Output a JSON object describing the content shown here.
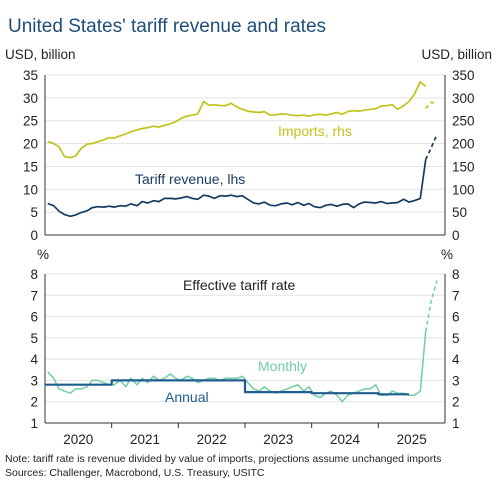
{
  "title": "United States' tariff revenue and rates",
  "note": "Note: tariff rate is revenue divided by value of imports, projections assume unchanged imports",
  "sources": "Sources: Challenger, Macrobond, U.S. Treasury, USITC",
  "colors": {
    "title": "#1f4e79",
    "imports": "#c3c21a",
    "revenue": "#143c61",
    "monthly": "#6fcfa3",
    "annual": "#1f5e8f"
  },
  "chart_data": [
    {
      "type": "line",
      "unit_left": "USD, billion",
      "unit_right": "USD, billion",
      "xlim": [
        2019.5,
        2025.5
      ],
      "x_ticks": [
        "2020",
        "2021",
        "2022",
        "2023",
        "2024",
        "2025"
      ],
      "y_left": {
        "ticks": [
          "0",
          "5",
          "10",
          "15",
          "20",
          "25",
          "30",
          "35"
        ],
        "lim": [
          0,
          35
        ]
      },
      "y_right": {
        "ticks": [
          "0",
          "50",
          "100",
          "150",
          "200",
          "250",
          "300",
          "350"
        ],
        "lim": [
          0,
          350
        ]
      },
      "grid": true,
      "series": [
        {
          "name": "Tariff revenue, lhs",
          "axis": "left",
          "x": [
            2019.54,
            2019.63,
            2019.71,
            2019.79,
            2019.88,
            2019.96,
            2020.04,
            2020.13,
            2020.21,
            2020.29,
            2020.38,
            2020.46,
            2020.54,
            2020.63,
            2020.71,
            2020.79,
            2020.88,
            2020.96,
            2021.04,
            2021.13,
            2021.21,
            2021.29,
            2021.38,
            2021.46,
            2021.54,
            2021.63,
            2021.71,
            2021.79,
            2021.88,
            2021.96,
            2022.04,
            2022.13,
            2022.21,
            2022.29,
            2022.38,
            2022.46,
            2022.54,
            2022.63,
            2022.71,
            2022.79,
            2022.88,
            2022.96,
            2023.04,
            2023.13,
            2023.21,
            2023.29,
            2023.38,
            2023.46,
            2023.54,
            2023.63,
            2023.71,
            2023.79,
            2023.88,
            2023.96,
            2024.04,
            2024.13,
            2024.21,
            2024.29,
            2024.38,
            2024.46,
            2024.54,
            2024.63,
            2024.71,
            2024.79,
            2024.88,
            2024.96,
            2025.04,
            2025.13,
            2025.21
          ],
          "values": [
            6.9,
            6.4,
            5.2,
            4.5,
            4.1,
            4.4,
            4.9,
            5.3,
            6.0,
            6.2,
            6.1,
            6.3,
            6.1,
            6.4,
            6.3,
            6.8,
            6.4,
            7.3,
            7.0,
            7.5,
            7.3,
            8.0,
            8.0,
            7.9,
            8.1,
            8.4,
            8.0,
            7.8,
            8.7,
            8.5,
            8.0,
            8.6,
            8.5,
            8.7,
            8.4,
            8.6,
            7.8,
            7.0,
            6.8,
            7.2,
            6.5,
            6.4,
            6.8,
            7.0,
            6.6,
            7.1,
            6.5,
            6.9,
            6.2,
            6.0,
            6.5,
            6.7,
            6.3,
            6.7,
            6.8,
            6.0,
            6.8,
            7.2,
            7.1,
            7.0,
            7.3,
            6.9,
            7.0,
            7.1,
            7.8,
            7.2,
            7.5,
            8.0,
            16.5
          ]
        },
        {
          "name": "Tariff revenue projection",
          "axis": "left",
          "dashed": true,
          "x": [
            2025.21,
            2025.29,
            2025.38
          ],
          "values": [
            16.5,
            19.0,
            22.0
          ]
        },
        {
          "name": "Imports, rhs",
          "axis": "right",
          "x": [
            2019.54,
            2019.63,
            2019.71,
            2019.79,
            2019.88,
            2019.96,
            2020.04,
            2020.13,
            2020.21,
            2020.29,
            2020.38,
            2020.46,
            2020.54,
            2020.63,
            2020.71,
            2020.79,
            2020.88,
            2020.96,
            2021.04,
            2021.13,
            2021.21,
            2021.29,
            2021.38,
            2021.46,
            2021.54,
            2021.63,
            2021.71,
            2021.79,
            2021.88,
            2021.96,
            2022.04,
            2022.13,
            2022.21,
            2022.29,
            2022.38,
            2022.46,
            2022.54,
            2022.63,
            2022.71,
            2022.79,
            2022.88,
            2022.96,
            2023.04,
            2023.13,
            2023.21,
            2023.29,
            2023.38,
            2023.46,
            2023.54,
            2023.63,
            2023.71,
            2023.79,
            2023.88,
            2023.96,
            2024.04,
            2024.13,
            2024.21,
            2024.29,
            2024.38,
            2024.46,
            2024.54,
            2024.63,
            2024.71,
            2024.79,
            2024.88,
            2024.96,
            2025.04,
            2025.13,
            2025.21
          ],
          "values": [
            204,
            200,
            193,
            172,
            169,
            173,
            189,
            199,
            200,
            204,
            208,
            213,
            212,
            217,
            221,
            226,
            230,
            233,
            235,
            238,
            236,
            240,
            243,
            248,
            255,
            260,
            262,
            265,
            292,
            284,
            285,
            283,
            283,
            288,
            280,
            275,
            271,
            269,
            268,
            270,
            262,
            263,
            265,
            264,
            262,
            261,
            262,
            260,
            263,
            264,
            262,
            265,
            268,
            264,
            270,
            272,
            271,
            273,
            275,
            276,
            282,
            283,
            285,
            275,
            283,
            292,
            308,
            335,
            325
          ]
        },
        {
          "name": "Imports projection",
          "axis": "right",
          "dashed": true,
          "x": [
            2025.21,
            2025.29,
            2025.38
          ],
          "values": [
            277,
            290,
            288
          ]
        }
      ],
      "annotations": [
        "Imports, rhs",
        "Tariff revenue, lhs"
      ]
    },
    {
      "type": "line",
      "unit_left": "%",
      "unit_right": "%",
      "title": "Effective tariff rate",
      "xlim": [
        2019.5,
        2025.5
      ],
      "x_ticks": [
        "2020",
        "2021",
        "2022",
        "2023",
        "2024",
        "2025"
      ],
      "y_left": {
        "ticks": [
          "1",
          "2",
          "3",
          "4",
          "5",
          "6",
          "7",
          "8"
        ],
        "lim": [
          1,
          8
        ]
      },
      "y_right": {
        "ticks": [
          "1",
          "2",
          "3",
          "4",
          "5",
          "6",
          "7",
          "8"
        ],
        "lim": [
          1,
          8
        ]
      },
      "grid": true,
      "series": [
        {
          "name": "Monthly",
          "x": [
            2019.54,
            2019.63,
            2019.71,
            2019.79,
            2019.88,
            2019.96,
            2020.04,
            2020.13,
            2020.21,
            2020.29,
            2020.38,
            2020.46,
            2020.54,
            2020.63,
            2020.71,
            2020.79,
            2020.88,
            2020.96,
            2021.04,
            2021.13,
            2021.21,
            2021.29,
            2021.38,
            2021.46,
            2021.54,
            2021.63,
            2021.71,
            2021.79,
            2021.88,
            2021.96,
            2022.04,
            2022.13,
            2022.21,
            2022.29,
            2022.38,
            2022.46,
            2022.54,
            2022.63,
            2022.71,
            2022.79,
            2022.88,
            2022.96,
            2023.04,
            2023.13,
            2023.21,
            2023.29,
            2023.38,
            2023.46,
            2023.54,
            2023.63,
            2023.71,
            2023.79,
            2023.88,
            2023.96,
            2024.04,
            2024.13,
            2024.21,
            2024.29,
            2024.38,
            2024.46,
            2024.54,
            2024.63,
            2024.71,
            2024.79,
            2024.88,
            2024.96,
            2025.04,
            2025.13,
            2025.21
          ],
          "values": [
            3.4,
            3.1,
            2.6,
            2.5,
            2.4,
            2.6,
            2.6,
            2.7,
            3.0,
            3.0,
            2.9,
            2.8,
            2.8,
            3.0,
            2.7,
            3.1,
            2.8,
            3.1,
            2.9,
            3.2,
            3.0,
            3.1,
            3.3,
            3.1,
            3.0,
            3.2,
            3.1,
            2.9,
            3.0,
            3.1,
            3.1,
            3.0,
            3.1,
            3.1,
            3.1,
            3.2,
            2.9,
            2.6,
            2.5,
            2.7,
            2.5,
            2.4,
            2.5,
            2.6,
            2.7,
            2.8,
            2.5,
            2.7,
            2.3,
            2.2,
            2.4,
            2.5,
            2.3,
            2.0,
            2.3,
            2.4,
            2.5,
            2.6,
            2.6,
            2.8,
            2.3,
            2.3,
            2.5,
            2.4,
            2.4,
            2.3,
            2.3,
            2.5,
            5.3
          ]
        },
        {
          "name": "Monthly projection",
          "dashed": true,
          "x": [
            2025.21,
            2025.29,
            2025.38
          ],
          "values": [
            5.3,
            6.7,
            7.7
          ]
        },
        {
          "name": "Annual",
          "step": true,
          "x": [
            2019.5,
            2020.5,
            2020.5,
            2021.5,
            2021.5,
            2022.5,
            2022.5,
            2023.5,
            2023.5,
            2024.5,
            2024.5,
            2024.96
          ],
          "values": [
            2.8,
            2.8,
            3.0,
            3.0,
            3.0,
            3.0,
            2.45,
            2.45,
            2.4,
            2.4,
            2.35,
            2.35
          ]
        }
      ],
      "annotations": [
        "Monthly",
        "Annual"
      ]
    }
  ]
}
